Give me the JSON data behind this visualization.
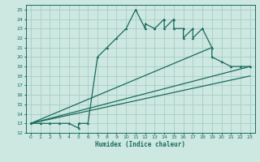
{
  "xlabel": "Humidex (Indice chaleur)",
  "bg_color": "#cce8e0",
  "grid_color": "#aaccC4",
  "line_color": "#1a6a60",
  "xlim": [
    -0.5,
    23.5
  ],
  "ylim": [
    12,
    25.5
  ],
  "xticks": [
    0,
    1,
    2,
    3,
    4,
    5,
    6,
    7,
    8,
    9,
    10,
    11,
    12,
    13,
    14,
    15,
    16,
    17,
    18,
    19,
    20,
    21,
    22,
    23
  ],
  "yticks": [
    12,
    13,
    14,
    15,
    16,
    17,
    18,
    19,
    20,
    21,
    22,
    23,
    24,
    25
  ],
  "line1_x": [
    0,
    1,
    2,
    3,
    4,
    5,
    5,
    6,
    7,
    8,
    9,
    10,
    10,
    11,
    12,
    12,
    13,
    13,
    14,
    14,
    15,
    15,
    16,
    16,
    17,
    17,
    18,
    18,
    19,
    19,
    20,
    21,
    22,
    23
  ],
  "line1_y": [
    13,
    13,
    13,
    13,
    13,
    12.5,
    13,
    13,
    20,
    21,
    22,
    23,
    23,
    25,
    23,
    23.5,
    23,
    23,
    24,
    23,
    24,
    23,
    23,
    22,
    23,
    22,
    23,
    23,
    21,
    20,
    19.5,
    19,
    19,
    19
  ],
  "line2_x": [
    0,
    23
  ],
  "line2_y": [
    13,
    19
  ],
  "line3_x": [
    0,
    23
  ],
  "line3_y": [
    13,
    18
  ],
  "line4_x": [
    0,
    19
  ],
  "line4_y": [
    13,
    21
  ],
  "markersize": 2.0,
  "linewidth": 0.9
}
